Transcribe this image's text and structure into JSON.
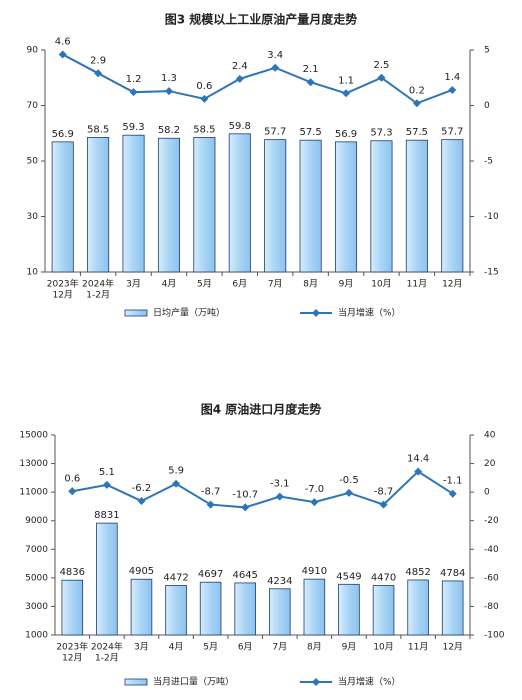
{
  "chart_data": [
    {
      "type": "combo",
      "title": "图3 规模以上工业原油产量月度走势",
      "categories": [
        [
          "2023年",
          "12月"
        ],
        [
          "2024年",
          "1-2月"
        ],
        [
          "3月"
        ],
        [
          "4月"
        ],
        [
          "5月"
        ],
        [
          "6月"
        ],
        [
          "7月"
        ],
        [
          "8月"
        ],
        [
          "9月"
        ],
        [
          "10月"
        ],
        [
          "11月"
        ],
        [
          "12月"
        ]
      ],
      "series": [
        {
          "name": "日均产量（万吨）",
          "type": "bar",
          "color": "#a9d4f5",
          "values": [
            56.9,
            58.5,
            59.3,
            58.2,
            58.5,
            59.8,
            57.7,
            57.5,
            56.9,
            57.3,
            57.5,
            57.7
          ]
        },
        {
          "name": "当月增速（%）",
          "type": "line",
          "axis": "y2",
          "color": "#2e75b6",
          "values": [
            4.6,
            2.9,
            1.2,
            1.3,
            0.6,
            2.4,
            3.4,
            2.1,
            1.1,
            2.5,
            0.2,
            1.4
          ]
        }
      ],
      "ylim": [
        10,
        90
      ],
      "yticks": [
        10,
        30,
        50,
        70,
        90
      ],
      "y2lim": [
        -15,
        5
      ],
      "y2ticks": [
        -15,
        -10,
        -5,
        0,
        5
      ]
    },
    {
      "type": "combo",
      "title": "图4 原油进口月度走势",
      "categories": [
        [
          "2023年",
          "12月"
        ],
        [
          "2024年",
          "1-2月"
        ],
        [
          "3月"
        ],
        [
          "4月"
        ],
        [
          "5月"
        ],
        [
          "6月"
        ],
        [
          "7月"
        ],
        [
          "8月"
        ],
        [
          "9月"
        ],
        [
          "10月"
        ],
        [
          "11月"
        ],
        [
          "12月"
        ]
      ],
      "series": [
        {
          "name": "当月进口量（万吨）",
          "type": "bar",
          "color": "#a9d4f5",
          "values": [
            4836,
            8831,
            4905,
            4472,
            4697,
            4645,
            4234,
            4910,
            4549,
            4470,
            4852,
            4784
          ]
        },
        {
          "name": "当月增速（%）",
          "type": "line",
          "axis": "y2",
          "color": "#2e75b6",
          "values": [
            0.6,
            5.1,
            -6.2,
            5.9,
            -8.7,
            -10.7,
            -3.1,
            -7,
            -0.5,
            -8.7,
            14.4,
            -1.1
          ],
          "value_labels": [
            "0.6",
            "5.1",
            "-6.2",
            "5.9",
            "-8.7",
            "-10.7",
            "-3.1",
            "-7.0",
            "-0.5",
            "-8.7",
            "14.4",
            "-1.1"
          ]
        }
      ],
      "ylim": [
        1000,
        15000
      ],
      "yticks": [
        1000,
        3000,
        5000,
        7000,
        9000,
        11000,
        13000,
        15000
      ],
      "y2lim": [
        -100,
        40
      ],
      "y2ticks": [
        -100,
        -80,
        -60,
        -40,
        -20,
        0,
        20,
        40
      ]
    }
  ]
}
